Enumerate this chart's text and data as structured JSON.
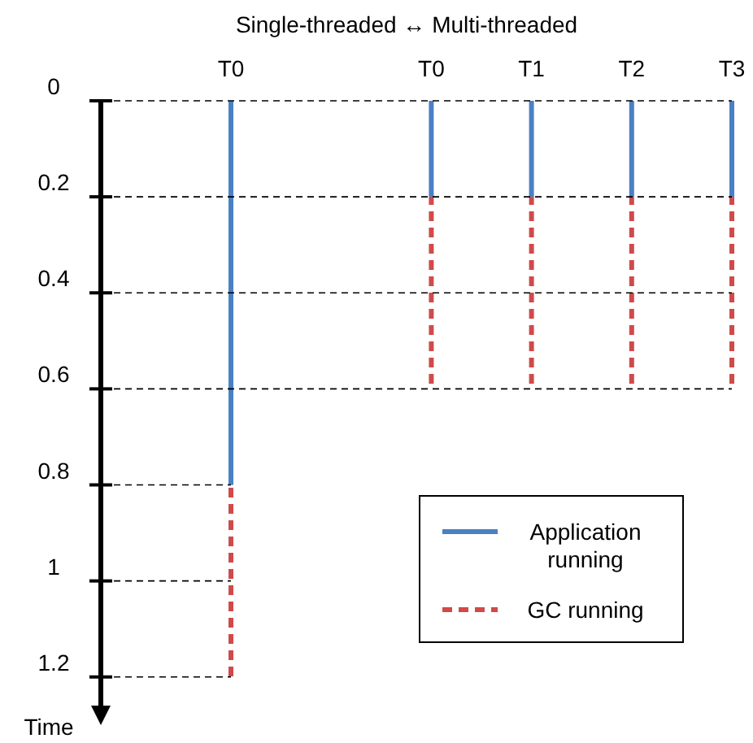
{
  "chart_data": {
    "type": "bar",
    "stacked": true,
    "title": "Single-threaded ↔ Multi-threaded",
    "ylabel": "Time",
    "categories": [
      "T0",
      null,
      "T0",
      "T1",
      "T2",
      "T3"
    ],
    "series": [
      {
        "name": "Application running",
        "color": "#4a80c4",
        "line_style": "solid",
        "values": [
          0.8,
          null,
          0.2,
          0.2,
          0.2,
          0.2
        ]
      },
      {
        "name": "GC running",
        "color": "#d04a4a",
        "line_style": "dashed",
        "values": [
          0.4,
          null,
          0.4,
          0.4,
          0.4,
          0.4
        ]
      }
    ],
    "ylim": [
      1.28,
      0
    ],
    "yticks": [
      0,
      0.2,
      0.4,
      0.6,
      {
        "value": 0.8,
        "label": "0.8"
      },
      1,
      1.2
    ],
    "legend": "bottom right",
    "ref_lines": [
      {
        "axis": "y",
        "value": 0.2,
        "color": "#000000",
        "line_style": "dashed"
      },
      {
        "axis": "y",
        "value": 0.4,
        "color": "#000000",
        "line_style": "dashed"
      },
      {
        "axis": "y",
        "value": 0.6,
        "color": "#000000",
        "line_style": "dashed"
      },
      {
        "axis": "y",
        "value": 0.8,
        "color": "#000000",
        "line_style": "dashed"
      },
      {
        "axis": "y",
        "value": 1,
        "color": "#000000",
        "line_style": "dashed"
      },
      {
        "axis": "y",
        "value": 1.2,
        "color": "#000000",
        "line_style": "dashed"
      }
    ]
  }
}
